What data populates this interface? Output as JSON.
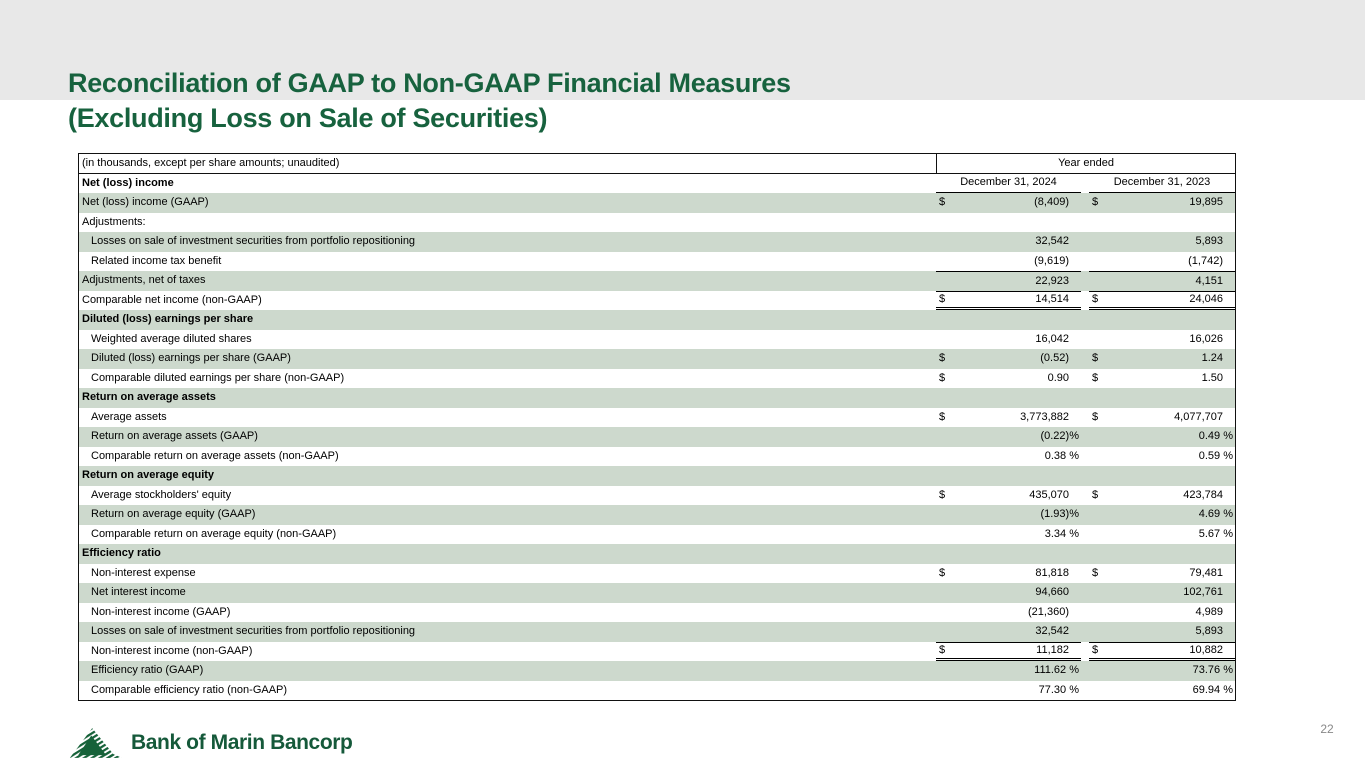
{
  "slide": {
    "title_line1": "Reconciliation of GAAP to Non-GAAP Financial Measures",
    "title_line2": "(Excluding Loss on Sale of Securities)",
    "title_color": "#17623e",
    "green_row_color": "#cdd9cd",
    "logo_text": "Bank of Marin Bancorp",
    "logo_icon": "mountain-hatch-icon",
    "page_number": "22"
  },
  "table": {
    "note": "(in thousands, except per share amounts; unaudited)",
    "year_ended_label": "Year ended",
    "first_section_label": "Net (loss) income",
    "col_2024": "December 31, 2024",
    "col_2023": "December 31, 2023",
    "rows": [
      {
        "label": "Net (loss) income (GAAP)",
        "indent": 0,
        "bold": false,
        "bg": "green",
        "d1": "$",
        "v1": "(8,409)",
        "d2": "$",
        "v2": "19,895"
      },
      {
        "label": "Adjustments:",
        "indent": 0,
        "bold": false,
        "bg": "white",
        "d1": "",
        "v1": "",
        "d2": "",
        "v2": ""
      },
      {
        "label": "Losses on sale of investment securities from portfolio repositioning",
        "indent": 1,
        "bold": false,
        "bg": "green",
        "d1": "",
        "v1": "32,542",
        "d2": "",
        "v2": "5,893"
      },
      {
        "label": "Related income tax benefit",
        "indent": 1,
        "bold": false,
        "bg": "white",
        "d1": "",
        "v1": "(9,619)",
        "d2": "",
        "v2": "(1,742)"
      },
      {
        "label": "Adjustments, net of taxes",
        "indent": 0,
        "bold": false,
        "bg": "green",
        "d1": "",
        "v1": "22,923",
        "d2": "",
        "v2": "4,151",
        "rule_top": true
      },
      {
        "label": "Comparable net income (non-GAAP)",
        "indent": 0,
        "bold": false,
        "bg": "white",
        "d1": "$",
        "v1": "14,514",
        "d2": "$",
        "v2": "24,046",
        "rule_top": true,
        "rule_bottom": "double"
      },
      {
        "label": "Diluted (loss) earnings per share",
        "indent": 0,
        "bold": true,
        "bg": "green",
        "d1": "",
        "v1": "",
        "d2": "",
        "v2": ""
      },
      {
        "label": "Weighted average diluted shares",
        "indent": 1,
        "bold": false,
        "bg": "white",
        "d1": "",
        "v1": "16,042",
        "d2": "",
        "v2": "16,026"
      },
      {
        "label": "Diluted (loss) earnings per share (GAAP)",
        "indent": 1,
        "bold": false,
        "bg": "green",
        "d1": "$",
        "v1": "(0.52)",
        "d2": "$",
        "v2": "1.24"
      },
      {
        "label": "Comparable diluted earnings per share (non-GAAP)",
        "indent": 1,
        "bold": false,
        "bg": "white",
        "d1": "$",
        "v1": "0.90",
        "d2": "$",
        "v2": "1.50"
      },
      {
        "label": "Return on average assets",
        "indent": 0,
        "bold": true,
        "bg": "green",
        "d1": "",
        "v1": "",
        "d2": "",
        "v2": ""
      },
      {
        "label": "Average assets",
        "indent": 1,
        "bold": false,
        "bg": "white",
        "d1": "$",
        "v1": "3,773,882",
        "d2": "$",
        "v2": "4,077,707"
      },
      {
        "label": "Return on average assets (GAAP)",
        "indent": 1,
        "bold": false,
        "bg": "green",
        "d1": "",
        "v1": "(0.22)%",
        "d2": "",
        "v2": "0.49 %"
      },
      {
        "label": "Comparable return on average assets (non-GAAP)",
        "indent": 1,
        "bold": false,
        "bg": "white",
        "d1": "",
        "v1": "0.38 %",
        "d2": "",
        "v2": "0.59 %"
      },
      {
        "label": "Return on average equity",
        "indent": 0,
        "bold": true,
        "bg": "green",
        "d1": "",
        "v1": "",
        "d2": "",
        "v2": ""
      },
      {
        "label": "Average stockholders' equity",
        "indent": 1,
        "bold": false,
        "bg": "white",
        "d1": "$",
        "v1": "435,070",
        "d2": "$",
        "v2": "423,784"
      },
      {
        "label": "Return on average equity (GAAP)",
        "indent": 1,
        "bold": false,
        "bg": "green",
        "d1": "",
        "v1": "(1.93)%",
        "d2": "",
        "v2": "4.69 %"
      },
      {
        "label": "Comparable return on average equity (non-GAAP)",
        "indent": 1,
        "bold": false,
        "bg": "white",
        "d1": "",
        "v1": "3.34 %",
        "d2": "",
        "v2": "5.67 %"
      },
      {
        "label": "Efficiency ratio",
        "indent": 0,
        "bold": true,
        "bg": "green",
        "d1": "",
        "v1": "",
        "d2": "",
        "v2": ""
      },
      {
        "label": "Non-interest expense",
        "indent": 1,
        "bold": false,
        "bg": "white",
        "d1": "$",
        "v1": "81,818",
        "d2": "$",
        "v2": "79,481"
      },
      {
        "label": "Net interest income",
        "indent": 1,
        "bold": false,
        "bg": "green",
        "d1": "",
        "v1": "94,660",
        "d2": "",
        "v2": "102,761"
      },
      {
        "label": "Non-interest income (GAAP)",
        "indent": 1,
        "bold": false,
        "bg": "white",
        "d1": "",
        "v1": "(21,360)",
        "d2": "",
        "v2": "4,989"
      },
      {
        "label": "Losses on sale of investment securities from portfolio repositioning",
        "indent": 1,
        "bold": false,
        "bg": "green",
        "d1": "",
        "v1": "32,542",
        "d2": "",
        "v2": "5,893"
      },
      {
        "label": "Non-interest income (non-GAAP)",
        "indent": 1,
        "bold": false,
        "bg": "white",
        "d1": "$",
        "v1": "11,182",
        "d2": "$",
        "v2": "10,882",
        "rule_top": true,
        "rule_bottom": "double"
      },
      {
        "label": "Efficiency ratio (GAAP)",
        "indent": 1,
        "bold": false,
        "bg": "green",
        "d1": "",
        "v1": "111.62 %",
        "d2": "",
        "v2": "73.76 %"
      },
      {
        "label": "Comparable efficiency ratio (non-GAAP)",
        "indent": 1,
        "bold": false,
        "bg": "white",
        "d1": "",
        "v1": "77.30 %",
        "d2": "",
        "v2": "69.94 %"
      }
    ]
  }
}
